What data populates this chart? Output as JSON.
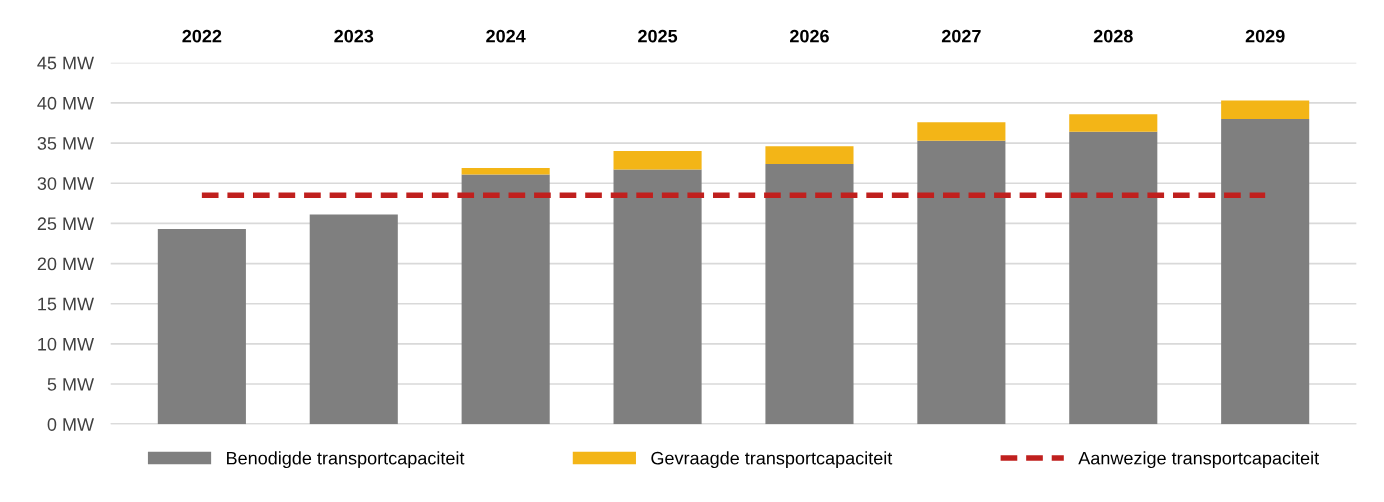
{
  "chart_data": {
    "type": "bar",
    "stacked": true,
    "categories": [
      "2022",
      "2023",
      "2024",
      "2025",
      "2026",
      "2027",
      "2028",
      "2029"
    ],
    "series": [
      {
        "name": "Benodigde transportcapaciteit",
        "color": "#7f7f7f",
        "values": [
          24.3,
          26.1,
          31.1,
          31.7,
          32.4,
          35.3,
          36.4,
          38.0
        ]
      },
      {
        "name": "Gevraagde transportcapaciteit",
        "color": "#f3b517",
        "values": [
          0,
          0,
          0.8,
          2.3,
          2.2,
          2.3,
          2.2,
          2.3
        ]
      },
      {
        "name": "Aanwezige transportcapaciteit",
        "color": "#c0201e",
        "type": "line",
        "line_style": "dashed",
        "values": [
          28.5,
          28.5,
          28.5,
          28.5,
          28.5,
          28.5,
          28.5,
          28.5
        ]
      }
    ],
    "ylim": [
      0,
      45
    ],
    "yticks": [
      {
        "value": 0,
        "label": "0 MW"
      },
      {
        "value": 5,
        "label": "5 MW"
      },
      {
        "value": 10,
        "label": "10 MW"
      },
      {
        "value": 15,
        "label": "15 MW"
      },
      {
        "value": 20,
        "label": "20 MW"
      },
      {
        "value": 25,
        "label": "25 MW"
      },
      {
        "value": 30,
        "label": "30 MW"
      },
      {
        "value": 35,
        "label": "35 MW"
      },
      {
        "value": 40,
        "label": "40 MW"
      },
      {
        "value": 45,
        "label": "45 MW"
      }
    ],
    "grid": "y",
    "legend": "bottom"
  }
}
